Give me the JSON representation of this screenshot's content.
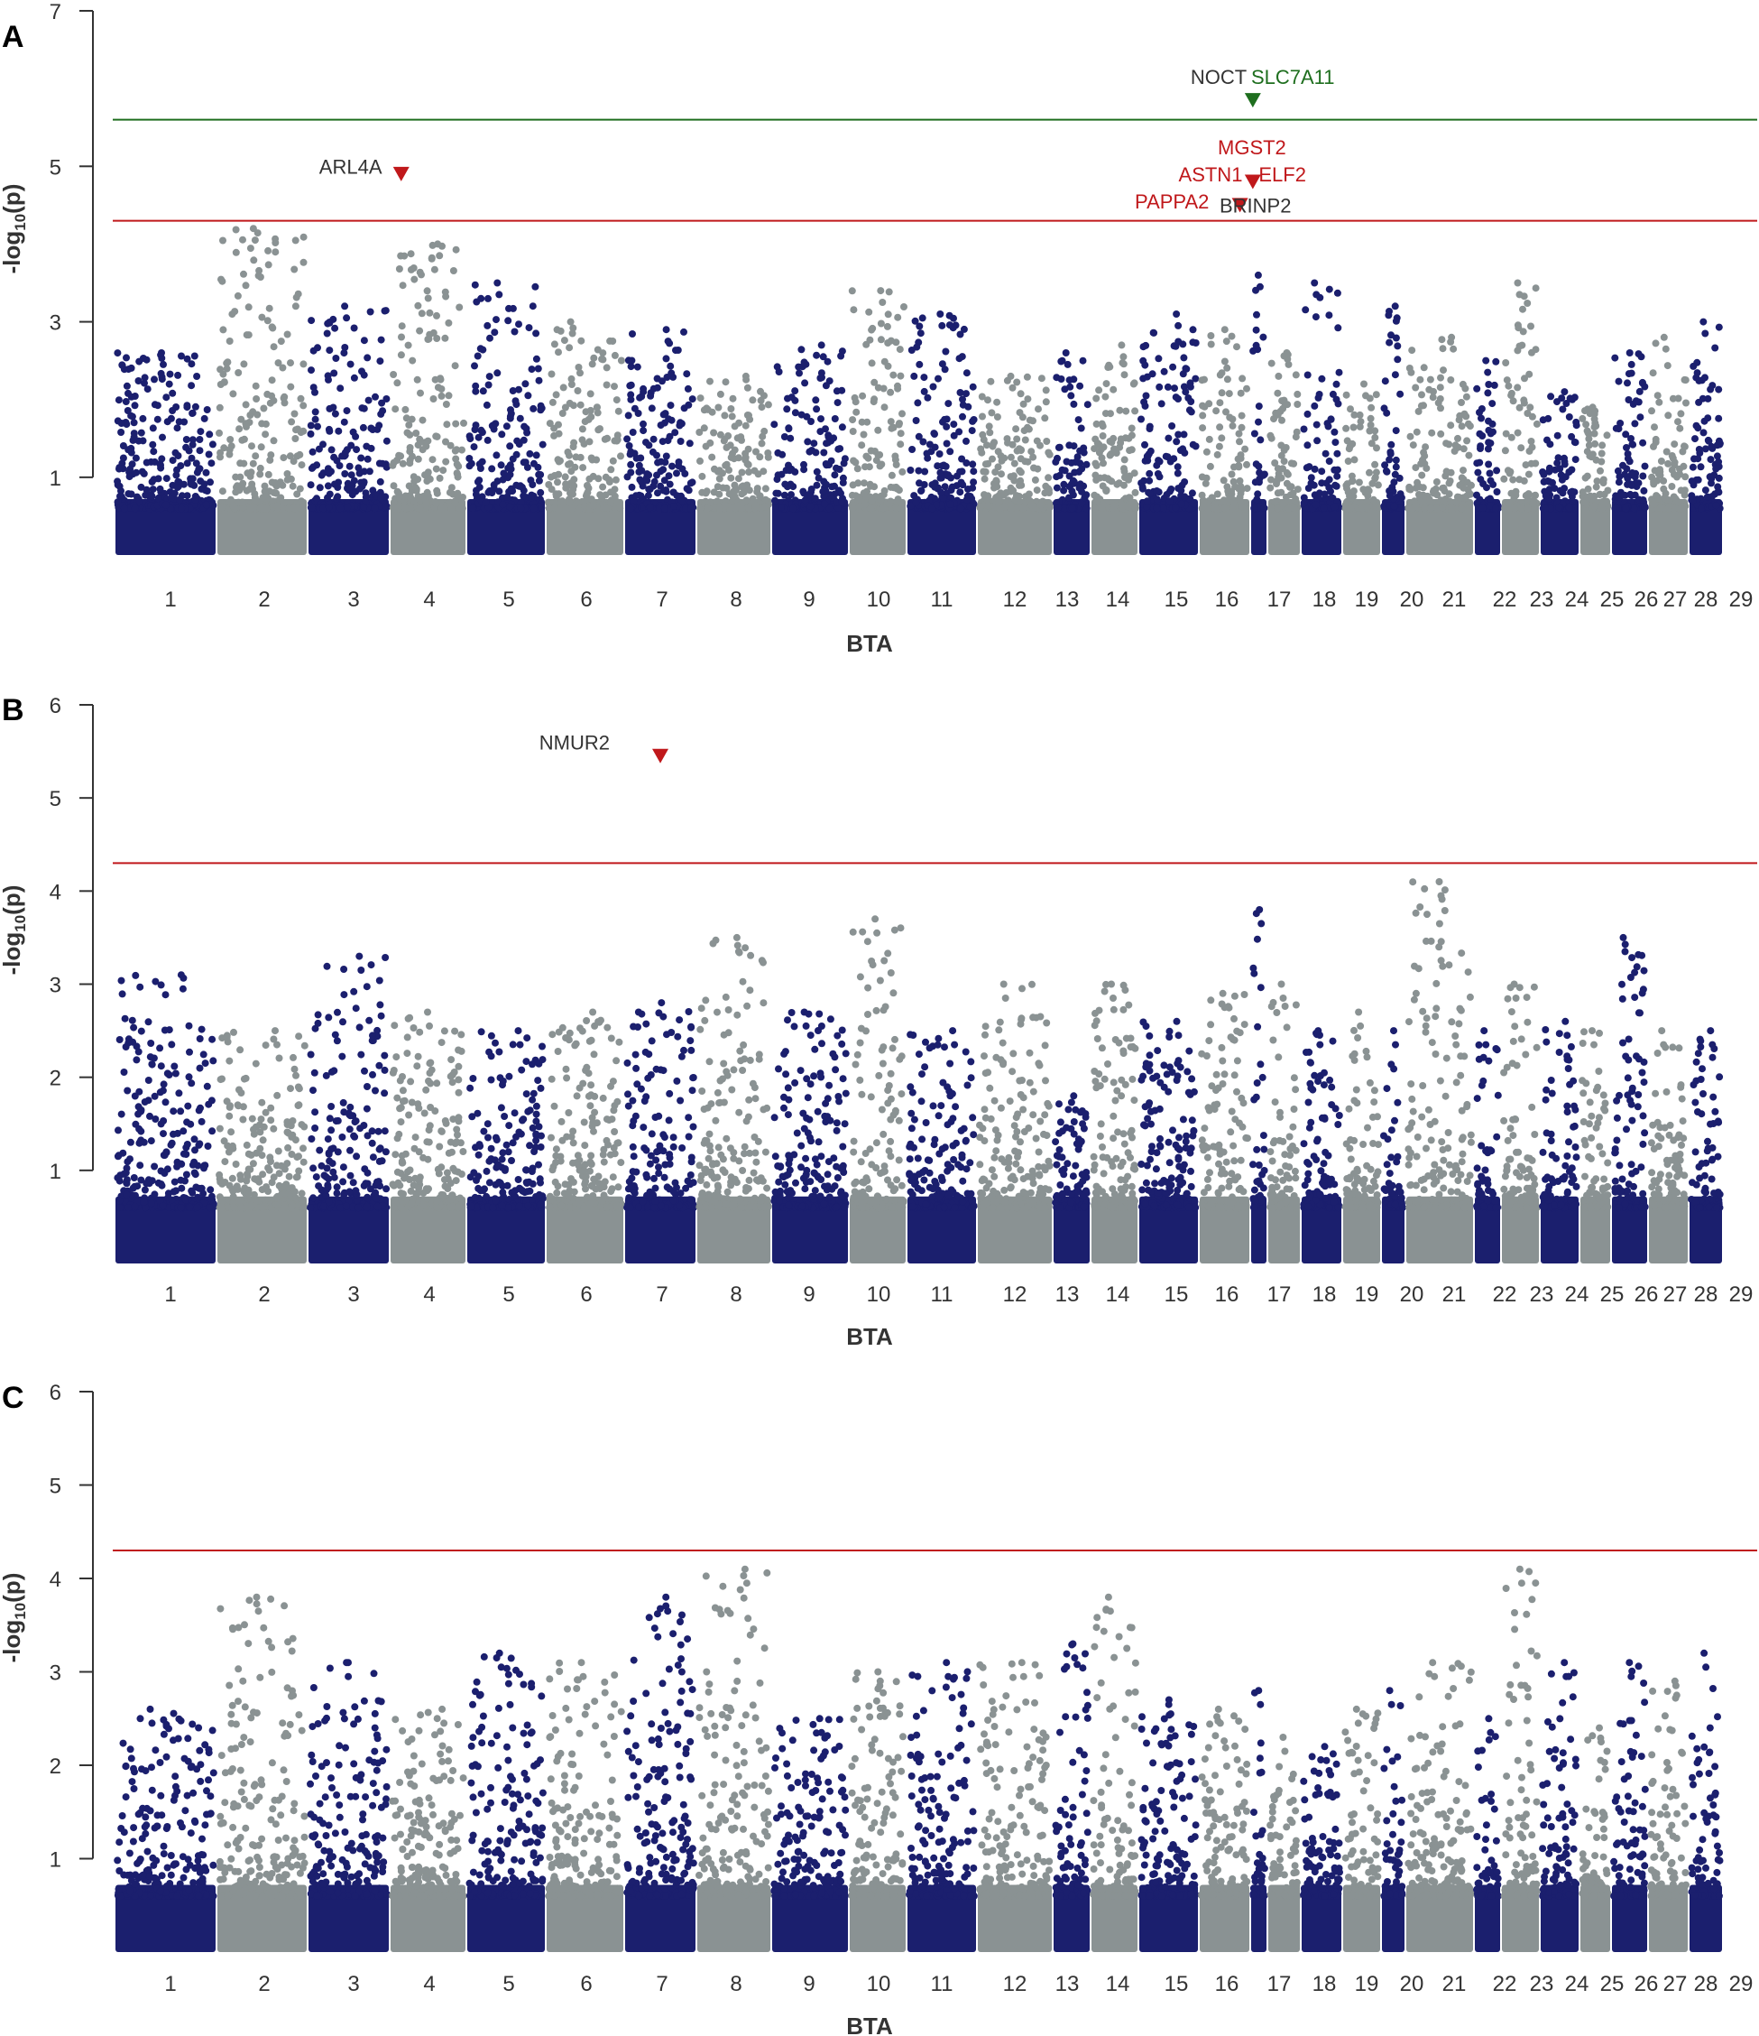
{
  "colors": {
    "dark": "#1b1f6e",
    "grey": "#8a9293",
    "red": "#c0181b",
    "green": "#1e6e1e",
    "text": "#333333"
  },
  "chromosomes": [
    "1",
    "2",
    "3",
    "4",
    "5",
    "6",
    "7",
    "8",
    "9",
    "10",
    "11",
    "12",
    "13",
    "14",
    "15",
    "16",
    "17",
    "18",
    "19",
    "20",
    "21",
    "22",
    "23",
    "24",
    "25",
    "26",
    "27",
    "28",
    "29"
  ],
  "chart_data": [
    {
      "type": "scatter",
      "panel": "A",
      "xlabel": "BTA",
      "ylabel_parts": [
        "-log",
        "10",
        "(p)"
      ],
      "ylim": [
        0,
        7
      ],
      "yticks": [
        "1",
        "3",
        "5",
        "7"
      ],
      "thresholds": [
        {
          "value": 5.6,
          "color": "green"
        },
        {
          "value": 4.3,
          "color": "red"
        }
      ],
      "chrom_peaks": [
        2.6,
        4.2,
        3.2,
        4.0,
        3.5,
        3.0,
        2.9,
        2.3,
        2.7,
        3.4,
        3.1,
        2.3,
        2.6,
        2.7,
        3.1,
        2.9,
        3.6,
        2.6,
        3.5,
        2.2,
        3.2,
        2.8,
        2.5,
        3.5,
        2.1,
        1.9,
        2.6,
        2.8,
        3.0
      ],
      "hits": [
        {
          "chrom": "4",
          "pos": 0.15,
          "y": 4.9,
          "color": "red"
        },
        {
          "chrom": "16",
          "pos": 0.8,
          "y": 4.5,
          "color": "red"
        },
        {
          "chrom": "17",
          "pos": 0.15,
          "y": 4.8,
          "color": "red"
        },
        {
          "chrom": "17",
          "pos": 0.15,
          "y": 5.85,
          "color": "green"
        }
      ],
      "gene_labels": [
        {
          "text": "ARL4A",
          "chrom": "4",
          "pos": -0.1,
          "y": 5.0,
          "color": "text",
          "anchor": "end"
        },
        {
          "text": "NOCT",
          "chrom": "17",
          "pos": -0.2,
          "y": 6.15,
          "color": "text",
          "anchor": "end"
        },
        {
          "text": "SLC7A11",
          "chrom": "17",
          "pos": 0.05,
          "y": 6.15,
          "color": "green",
          "anchor": "start"
        },
        {
          "text": "MGST2",
          "chrom": "17",
          "pos": 0.1,
          "y": 5.25,
          "color": "red",
          "anchor": "middle"
        },
        {
          "text": "ASTN1",
          "chrom": "16",
          "pos": 0.85,
          "y": 4.9,
          "color": "red",
          "anchor": "end"
        },
        {
          "text": "ELF2",
          "chrom": "18",
          "pos": 0.45,
          "y": 4.9,
          "color": "red",
          "anchor": "middle"
        },
        {
          "text": "PAPPA2",
          "chrom": "16",
          "pos": 0.2,
          "y": 4.55,
          "color": "red",
          "anchor": "end"
        },
        {
          "text": "BRINP2",
          "chrom": "17",
          "pos": 0.3,
          "y": 4.5,
          "color": "text",
          "anchor": "middle"
        }
      ]
    },
    {
      "type": "scatter",
      "panel": "B",
      "xlabel": "BTA",
      "ylabel_parts": [
        "-log",
        "10",
        "(p)"
      ],
      "ylim": [
        0,
        6
      ],
      "yticks": [
        "1",
        "2",
        "3",
        "4",
        "5",
        "6"
      ],
      "thresholds": [
        {
          "value": 4.3,
          "color": "red"
        }
      ],
      "chrom_peaks": [
        3.1,
        2.5,
        3.3,
        2.7,
        2.5,
        2.7,
        2.8,
        3.5,
        2.7,
        3.7,
        2.5,
        3.0,
        1.8,
        3.0,
        2.6,
        2.9,
        3.8,
        3.0,
        2.5,
        2.7,
        2.5,
        4.1,
        2.5,
        3.0,
        2.6,
        2.5,
        3.5,
        2.5,
        2.5
      ],
      "hits": [
        {
          "chrom": "7",
          "pos": 0.5,
          "y": 5.45,
          "color": "red"
        }
      ],
      "gene_labels": [
        {
          "text": "NMUR2",
          "chrom": "7",
          "pos": -0.2,
          "y": 5.6,
          "color": "text",
          "anchor": "end"
        }
      ]
    },
    {
      "type": "scatter",
      "panel": "C",
      "xlabel": "BTA",
      "ylabel_parts": [
        "-log",
        "10",
        "(p)"
      ],
      "ylim": [
        0,
        6
      ],
      "yticks": [
        "1",
        "2",
        "3",
        "4",
        "5",
        "6"
      ],
      "thresholds": [
        {
          "value": 4.3,
          "color": "red"
        }
      ],
      "chrom_peaks": [
        2.6,
        3.8,
        3.1,
        2.6,
        3.2,
        3.1,
        3.8,
        4.1,
        2.5,
        3.0,
        3.1,
        3.1,
        3.3,
        3.8,
        2.7,
        2.6,
        2.8,
        2.3,
        2.2,
        2.6,
        2.8,
        3.1,
        2.5,
        4.1,
        3.1,
        2.4,
        3.1,
        2.9,
        3.2
      ],
      "hits": [],
      "gene_labels": []
    }
  ]
}
